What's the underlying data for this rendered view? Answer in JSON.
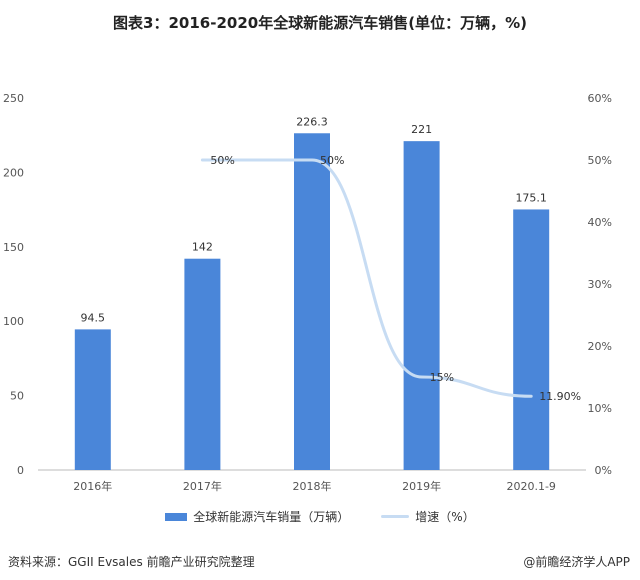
{
  "title": "图表3：2016-2020年全球新能源汽车销售(单位：万辆，%)",
  "colors": {
    "bar": "#4a86d9",
    "line": "#c7dcf3",
    "axis": "#bbbbbb"
  },
  "chart_data": {
    "type": "bar",
    "categories": [
      "2016年",
      "2017年",
      "2018年",
      "2019年",
      "2020.1-9"
    ],
    "series": [
      {
        "name": "全球新能源汽车销量（万辆）",
        "type": "bar",
        "axis": "left",
        "values": [
          94.5,
          142,
          226.3,
          221,
          175.1
        ],
        "labels": [
          "94.5",
          "142",
          "226.3",
          "221",
          "175.1"
        ]
      },
      {
        "name": "增速（%）",
        "type": "line",
        "axis": "right",
        "values": [
          null,
          50,
          50,
          15,
          11.9
        ],
        "labels": [
          "",
          "50%",
          "50%",
          "15%",
          "11.90%"
        ]
      }
    ],
    "y_left": {
      "ylim": [
        0,
        250
      ],
      "ticks": [
        "0",
        "50",
        "100",
        "150",
        "200",
        "250"
      ]
    },
    "y_right": {
      "ylim": [
        0,
        60
      ],
      "ticks": [
        "0%",
        "10%",
        "20%",
        "30%",
        "40%",
        "50%",
        "60%"
      ]
    },
    "legend_position": "bottom"
  },
  "footer": {
    "source": "资料来源：GGII Evsales 前瞻产业研究院整理",
    "brand": "@前瞻经济学人APP"
  }
}
